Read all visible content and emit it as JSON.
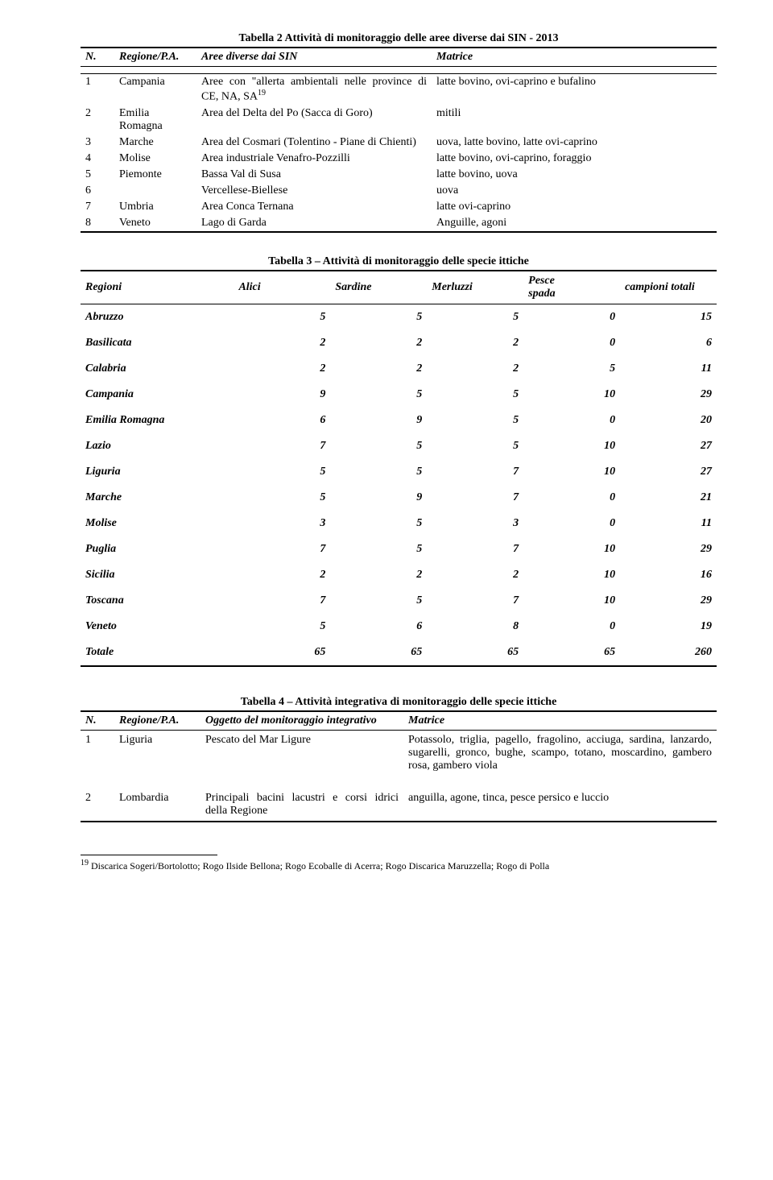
{
  "table2": {
    "title": "Tabella 2 Attività di monitoraggio delle aree diverse dai SIN - 2013",
    "headers": {
      "n": "N.",
      "reg": "Regione/P.A.",
      "aree": "Aree diverse dai SIN",
      "mat": "Matrice"
    },
    "rows": [
      {
        "n": "1",
        "reg": "Campania",
        "aree": "Aree con \"allerta ambientali nelle province di CE, NA, SA",
        "sup": "19",
        "mat": "latte bovino, ovi-caprino e bufalino"
      },
      {
        "n": "2",
        "reg": "Emilia Romagna",
        "aree": "Area del Delta del Po (Sacca di Goro)",
        "mat": "mitili"
      },
      {
        "n": "3",
        "reg": "Marche",
        "aree": "Area del Cosmari (Tolentino - Piane di Chienti)",
        "mat": "uova, latte bovino, latte ovi-caprino"
      },
      {
        "n": "4",
        "reg": "Molise",
        "aree": "Area industriale Venafro-Pozzilli",
        "mat": "latte bovino, ovi-caprino, foraggio"
      },
      {
        "n": "5",
        "reg": "Piemonte",
        "aree": "Bassa Val di Susa",
        "mat": "latte bovino, uova"
      },
      {
        "n": "6",
        "reg": "",
        "aree": "Vercellese-Biellese",
        "mat": "uova"
      },
      {
        "n": "7",
        "reg": "Umbria",
        "aree": "Area Conca Ternana",
        "mat": "latte ovi-caprino"
      },
      {
        "n": "8",
        "reg": "Veneto",
        "aree": "Lago di Garda",
        "mat": "Anguille, agoni"
      }
    ]
  },
  "table3": {
    "title": "Tabella 3 – Attività di monitoraggio delle specie ittiche",
    "headers": [
      "Regioni",
      "Alici",
      "Sardine",
      "Merluzzi",
      "Pesce spada",
      "campioni totali"
    ],
    "rows": [
      [
        "Abruzzo",
        "5",
        "5",
        "5",
        "0",
        "15"
      ],
      [
        "Basilicata",
        "2",
        "2",
        "2",
        "0",
        "6"
      ],
      [
        "Calabria",
        "2",
        "2",
        "2",
        "5",
        "11"
      ],
      [
        "Campania",
        "9",
        "5",
        "5",
        "10",
        "29"
      ],
      [
        "Emilia Romagna",
        "6",
        "9",
        "5",
        "0",
        "20"
      ],
      [
        "Lazio",
        "7",
        "5",
        "5",
        "10",
        "27"
      ],
      [
        "Liguria",
        "5",
        "5",
        "7",
        "10",
        "27"
      ],
      [
        "Marche",
        "5",
        "9",
        "7",
        "0",
        "21"
      ],
      [
        "Molise",
        "3",
        "5",
        "3",
        "0",
        "11"
      ],
      [
        "Puglia",
        "7",
        "5",
        "7",
        "10",
        "29"
      ],
      [
        "Sicilia",
        "2",
        "2",
        "2",
        "10",
        "16"
      ],
      [
        "Toscana",
        "7",
        "5",
        "7",
        "10",
        "29"
      ],
      [
        "Veneto",
        "5",
        "6",
        "8",
        "0",
        "19"
      ],
      [
        "Totale",
        "65",
        "65",
        "65",
        "65",
        "260"
      ]
    ]
  },
  "table4": {
    "title": "Tabella 4 – Attività integrativa di monitoraggio delle specie ittiche",
    "headers": {
      "n": "N.",
      "reg": "Regione/P.A.",
      "ogg": "Oggetto del monitoraggio integrativo",
      "mat": "Matrice"
    },
    "rows": [
      {
        "n": "1",
        "reg": "Liguria",
        "ogg": "Pescato del Mar Ligure",
        "mat": "Potassolo, triglia, pagello, fragolino, acciuga, sardina, lanzardo, sugarelli, gronco, bughe, scampo, totano, moscardino, gambero rosa, gambero viola"
      },
      {
        "n": "2",
        "reg": "Lombardia",
        "ogg": "Principali bacini lacustri e corsi idrici della Regione",
        "mat": "anguilla, agone, tinca, pesce persico e luccio"
      }
    ]
  },
  "footnote": {
    "num": "19",
    "text": " Discarica Sogeri/Bortolotto; Rogo Ilside Bellona; Rogo Ecoballe di Acerra; Rogo Discarica Maruzzella; Rogo di Polla"
  }
}
